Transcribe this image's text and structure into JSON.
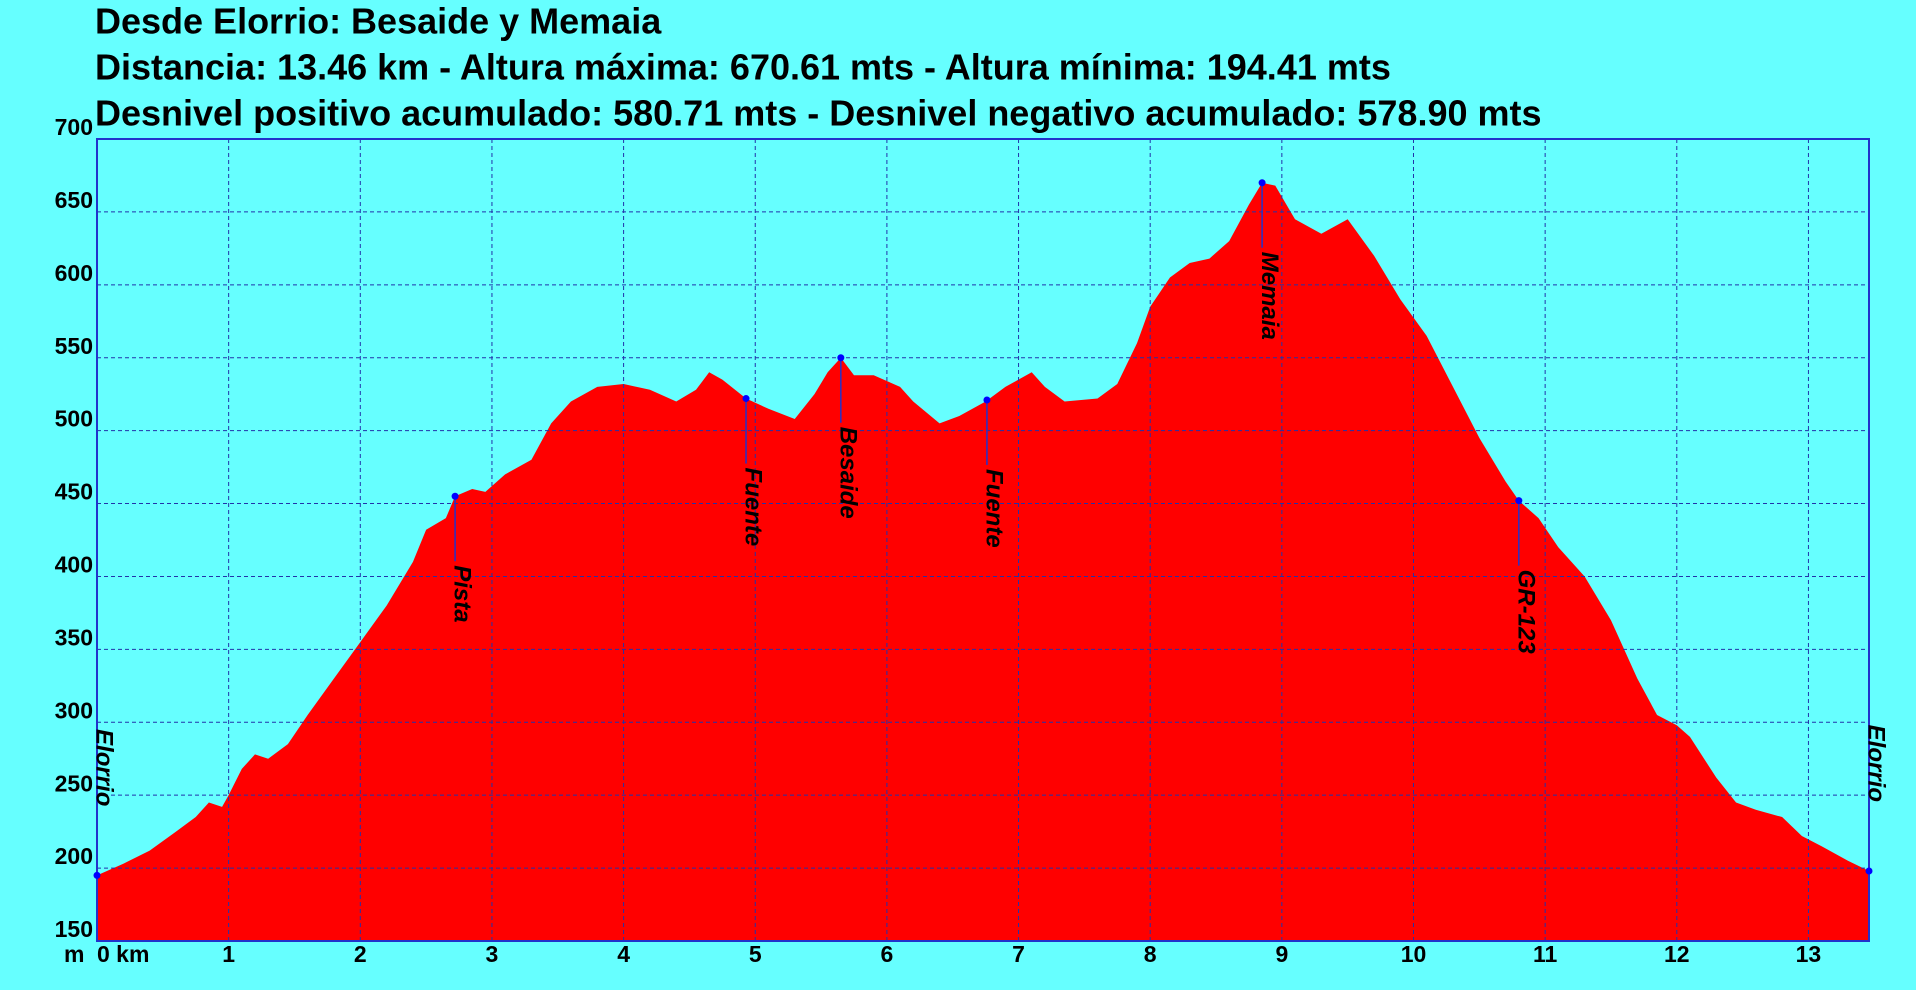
{
  "chart_data": {
    "type": "area",
    "title": "Desde Elorrio: Besaide y Memaia",
    "subtitle": "Distancia: 13.46 km - Altura máxima: 670.61 mts - Altura mínima: 194.41 mts",
    "subtitle2": "Desnivel positivo acumulado: 580.71 mts - Desnivel negativo acumulado: 578.90 mts",
    "y_label": "m",
    "color": "#ff0000",
    "background": "#66ffff",
    "grid": true,
    "x": [
      0,
      0.2,
      0.4,
      0.6,
      0.75,
      0.85,
      0.95,
      1.0,
      1.1,
      1.2,
      1.3,
      1.45,
      1.6,
      1.8,
      2.0,
      2.2,
      2.4,
      2.5,
      2.65,
      2.72,
      2.85,
      2.95,
      3.1,
      3.3,
      3.45,
      3.6,
      3.8,
      4.0,
      4.2,
      4.4,
      4.55,
      4.65,
      4.75,
      4.93,
      5.1,
      5.3,
      5.45,
      5.55,
      5.65,
      5.75,
      5.9,
      6.1,
      6.2,
      6.4,
      6.55,
      6.75,
      6.9,
      7.1,
      7.2,
      7.35,
      7.6,
      7.75,
      7.9,
      8.0,
      8.15,
      8.3,
      8.45,
      8.6,
      8.75,
      8.85,
      8.95,
      9.1,
      9.3,
      9.5,
      9.7,
      9.9,
      10.1,
      10.3,
      10.5,
      10.7,
      10.8,
      10.95,
      11.1,
      11.3,
      11.5,
      11.7,
      11.85,
      12.0,
      12.1,
      12.3,
      12.45,
      12.6,
      12.8,
      12.95,
      13.1,
      13.3,
      13.46
    ],
    "values": [
      195,
      203,
      212,
      225,
      235,
      245,
      242,
      250,
      268,
      278,
      275,
      285,
      305,
      330,
      355,
      380,
      410,
      432,
      440,
      455,
      460,
      458,
      470,
      480,
      505,
      520,
      530,
      532,
      528,
      520,
      528,
      540,
      535,
      522,
      515,
      508,
      525,
      540,
      550,
      538,
      538,
      530,
      520,
      505,
      510,
      520,
      530,
      540,
      530,
      520,
      522,
      532,
      560,
      585,
      605,
      615,
      618,
      630,
      655,
      670,
      668,
      645,
      635,
      645,
      620,
      590,
      565,
      530,
      495,
      465,
      452,
      440,
      420,
      400,
      370,
      330,
      305,
      298,
      290,
      262,
      245,
      240,
      235,
      222,
      215,
      205,
      198
    ],
    "waypoints": [
      {
        "name": "Elorrio",
        "x": 0,
        "y": 195
      },
      {
        "name": "Pista",
        "x": 2.72,
        "y": 455
      },
      {
        "name": "Fuente",
        "x": 4.93,
        "y": 522
      },
      {
        "name": "Besaide",
        "x": 5.65,
        "y": 550
      },
      {
        "name": "Fuente",
        "x": 6.76,
        "y": 521
      },
      {
        "name": "Memaia",
        "x": 8.85,
        "y": 670
      },
      {
        "name": "GR-123",
        "x": 10.8,
        "y": 452
      },
      {
        "name": "Elorrio",
        "x": 13.46,
        "y": 198
      }
    ],
    "xlim": [
      0,
      13.46
    ],
    "xticks": [
      {
        "value": 0,
        "label": "0 km"
      },
      1,
      2,
      3,
      4,
      5,
      6,
      7,
      8,
      9,
      10,
      11,
      12,
      13
    ],
    "ylim": [
      150,
      700
    ],
    "yticks": [
      150,
      200,
      250,
      300,
      350,
      400,
      450,
      500,
      550,
      600,
      650,
      700
    ]
  }
}
